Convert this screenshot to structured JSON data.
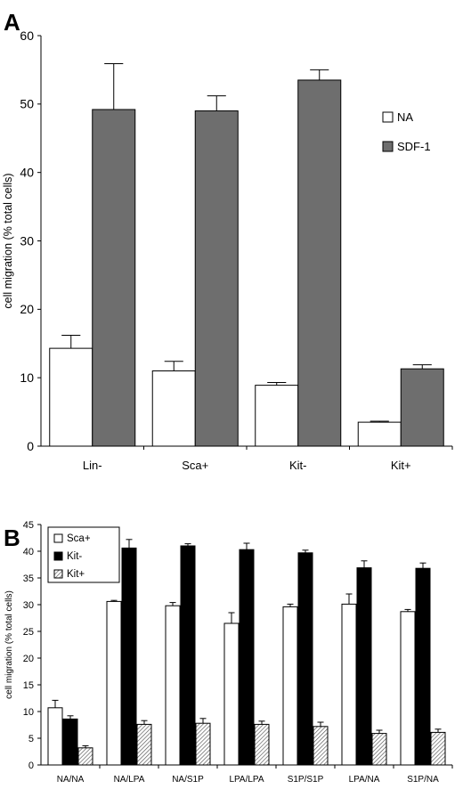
{
  "chart_data": [
    {
      "panel": "A",
      "type": "bar",
      "ylabel": "cell migration (% total cells)",
      "xlabel": "",
      "ylim": [
        0,
        60
      ],
      "yticks": [
        0,
        10,
        20,
        30,
        40,
        50,
        60
      ],
      "categories": [
        "Lin-",
        "Sca+",
        "Kit-",
        "Kit+"
      ],
      "legend_position": "right",
      "series": [
        {
          "name": "NA",
          "color": "#ffffff",
          "pattern": "none",
          "values": [
            14.3,
            11.0,
            8.9,
            3.5
          ],
          "errors": [
            1.9,
            1.4,
            0.4,
            0.15
          ]
        },
        {
          "name": "SDF-1",
          "color": "#6e6e6e",
          "pattern": "none",
          "values": [
            49.2,
            49.0,
            53.5,
            11.3
          ],
          "errors": [
            6.7,
            2.2,
            1.5,
            0.6
          ]
        }
      ]
    },
    {
      "panel": "B",
      "type": "bar",
      "ylabel": "cell migration (% total cells)",
      "xlabel": "",
      "ylim": [
        0,
        45
      ],
      "yticks": [
        0,
        5,
        10,
        15,
        20,
        25,
        30,
        35,
        40,
        45
      ],
      "categories": [
        "NA/NA",
        "NA/LPA",
        "NA/S1P",
        "LPA/LPA",
        "S1P/S1P",
        "LPA/NA",
        "S1P/NA"
      ],
      "legend_position": "top-left",
      "series": [
        {
          "name": "Sca+",
          "color": "#ffffff",
          "pattern": "none",
          "values": [
            10.7,
            30.6,
            29.8,
            26.5,
            29.6,
            30.1,
            28.7
          ],
          "errors": [
            1.4,
            0.2,
            0.6,
            2.0,
            0.5,
            1.9,
            0.4
          ]
        },
        {
          "name": "Kit-",
          "color": "#000000",
          "pattern": "none",
          "values": [
            8.6,
            40.6,
            41.0,
            40.3,
            39.7,
            36.9,
            36.8
          ],
          "errors": [
            0.6,
            1.6,
            0.4,
            1.2,
            0.5,
            1.3,
            1.0
          ]
        },
        {
          "name": "Kit+",
          "color": "#ffffff",
          "pattern": "hatch",
          "values": [
            3.2,
            7.6,
            7.8,
            7.6,
            7.2,
            5.9,
            6.1
          ],
          "errors": [
            0.4,
            0.7,
            0.9,
            0.6,
            0.8,
            0.6,
            0.6
          ]
        }
      ]
    }
  ]
}
